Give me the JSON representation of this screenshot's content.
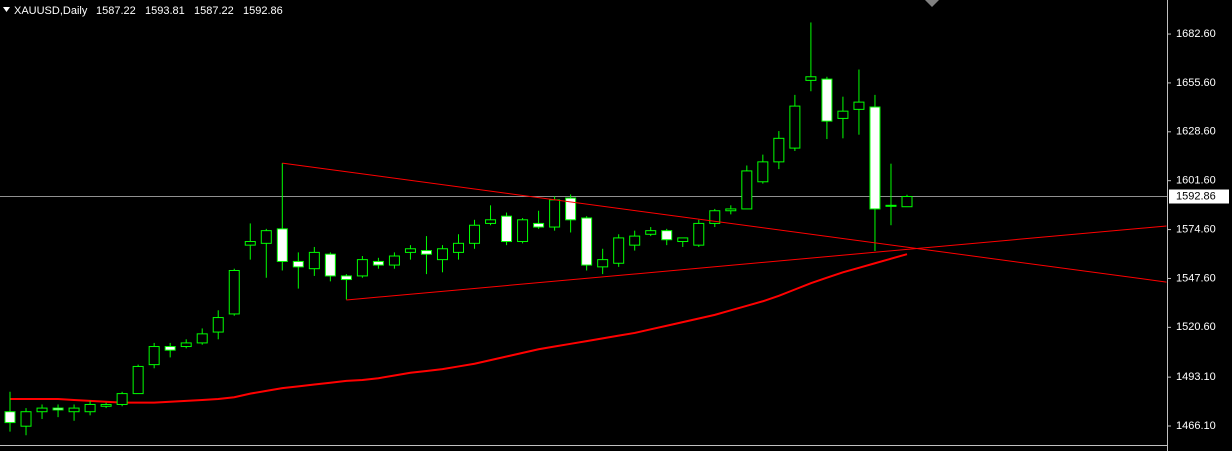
{
  "chart_data": {
    "type": "candlestick",
    "title": "XAUUSD,Daily",
    "open": [
      1474,
      1466,
      1474,
      1476,
      1474,
      1474,
      1477,
      1478,
      1484,
      1500,
      1510,
      1510,
      1512,
      1518,
      1528,
      1566,
      1567,
      1575,
      1557,
      1553,
      1561,
      1549,
      1549,
      1557,
      1555,
      1562,
      1563,
      1558,
      1562,
      1567,
      1578,
      1582,
      1568,
      1578,
      1576,
      1592,
      1581,
      1554,
      1556,
      1566,
      1572,
      1574,
      1568,
      1566,
      1578,
      1585,
      1586,
      1601,
      1612,
      1619.6,
      1657,
      1657.7,
      1636,
      1641,
      1642.3,
      1588,
      1587.22
    ],
    "high": [
      1485,
      1476,
      1478,
      1478,
      1478,
      1480,
      1479,
      1485,
      1500,
      1512,
      1512,
      1514,
      1520,
      1530,
      1553,
      1578,
      1575,
      1611.3,
      1562,
      1565,
      1562,
      1550,
      1560,
      1559,
      1562,
      1566,
      1571,
      1566,
      1572,
      1580,
      1588,
      1584,
      1581,
      1585,
      1593,
      1594,
      1582,
      1564,
      1572,
      1574,
      1576,
      1575,
      1570,
      1580,
      1586,
      1588,
      1610,
      1616,
      1629,
      1649,
      1689,
      1659,
      1648,
      1663,
      1649,
      1611,
      1593.81
    ],
    "low": [
      1463,
      1461,
      1470,
      1471,
      1469,
      1472,
      1476,
      1477,
      1484,
      1498,
      1504,
      1509,
      1511,
      1514,
      1527,
      1558,
      1548,
      1552,
      1542,
      1549,
      1546,
      1536,
      1548,
      1553,
      1553,
      1558,
      1550,
      1551,
      1558,
      1564,
      1577,
      1566,
      1567,
      1575,
      1574,
      1573,
      1552,
      1550,
      1554,
      1563,
      1571,
      1566,
      1565,
      1565,
      1576,
      1583,
      1586,
      1600,
      1608,
      1618,
      1651,
      1624.6,
      1625,
      1627,
      1562.8,
      1577,
      1587.22
    ],
    "close": [
      1468,
      1474,
      1476,
      1475,
      1476,
      1478,
      1478,
      1484,
      1499,
      1510,
      1508,
      1512,
      1517,
      1526,
      1552,
      1568,
      1574,
      1557,
      1554,
      1562,
      1549,
      1547,
      1558,
      1555,
      1560,
      1564,
      1561,
      1564,
      1567,
      1577,
      1580,
      1568,
      1580,
      1576,
      1591,
      1580,
      1555,
      1558,
      1570,
      1571,
      1574,
      1569,
      1570,
      1578,
      1585,
      1586,
      1607,
      1612,
      1625,
      1642.8,
      1659,
      1634.5,
      1640,
      1645,
      1586,
      1588,
      1592.86
    ],
    "up_color": "#000000",
    "down_color": "#ffffff",
    "outline_color": "#00ff00",
    "ma": {
      "color": "#ff0000",
      "values": [
        1481,
        1481,
        1481,
        1481,
        1480.5,
        1480,
        1479.5,
        1479,
        1479,
        1479,
        1479.5,
        1480,
        1480.5,
        1481,
        1482,
        1484,
        1485.5,
        1487,
        1488,
        1489,
        1490,
        1491,
        1491.5,
        1492.5,
        1494,
        1495.5,
        1496.5,
        1497.5,
        1499,
        1500.5,
        1502.5,
        1504.5,
        1506.5,
        1508.5,
        1510,
        1511.5,
        1513,
        1514.5,
        1516,
        1517.5,
        1519.5,
        1521.5,
        1523.5,
        1525.5,
        1527.5,
        1530,
        1532.5,
        1535,
        1538,
        1541.5,
        1545,
        1548,
        1551,
        1553.5,
        1556,
        1558.5,
        1561
      ]
    },
    "trendlines": [
      {
        "color": "#ff0000",
        "x": [
          17,
          72.2
        ],
        "y": [
          1611.3,
          1545.6
        ]
      },
      {
        "color": "#ff0000",
        "x": [
          21,
          72.2
        ],
        "y": [
          1535.7,
          1576.6
        ]
      }
    ],
    "current_price": 1592.86,
    "ylim": [
      1452.3,
      1701.4
    ],
    "yticks": [
      {
        "value": 1682.6,
        "label": "1682.60"
      },
      {
        "value": 1655.6,
        "label": "1655.60"
      },
      {
        "value": 1628.6,
        "label": "1628.60"
      },
      {
        "value": 1601.6,
        "label": "1601.60"
      },
      {
        "value": 1574.6,
        "label": "1574.60"
      },
      {
        "value": 1547.6,
        "label": "1547.60"
      },
      {
        "value": 1520.6,
        "label": "1520.60"
      },
      {
        "value": 1493.1,
        "label": "1493.10"
      },
      {
        "value": 1466.1,
        "label": "1466.10"
      }
    ]
  }
}
